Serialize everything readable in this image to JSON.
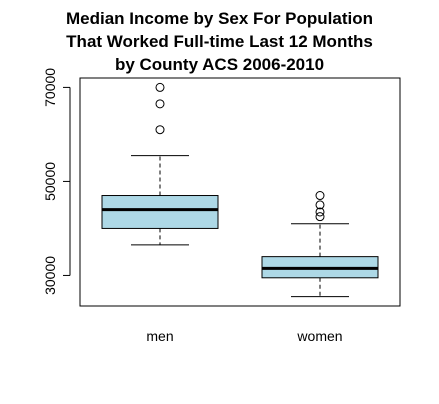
{
  "chart_data": {
    "type": "boxplot",
    "title_lines": [
      "Median Income by Sex For Population",
      "That Worked Full-time Last 12 Months",
      "by County ACS 2006-2010"
    ],
    "categories": [
      "men",
      "women"
    ],
    "ylim": [
      23500,
      72000
    ],
    "yticks": [
      {
        "value": 30000,
        "label": "30000"
      },
      {
        "value": 50000,
        "label": "50000"
      },
      {
        "value": 70000,
        "label": "70000"
      }
    ],
    "grid": false,
    "box_fill": "#add8e6",
    "boxes": [
      {
        "name": "men",
        "whisker_low": 36500,
        "q1": 40000,
        "median": 44000,
        "q3": 47000,
        "whisker_high": 55500,
        "outliers": [
          61000,
          66500,
          70000
        ]
      },
      {
        "name": "women",
        "whisker_low": 25500,
        "q1": 29500,
        "median": 31500,
        "q3": 34000,
        "whisker_high": 41000,
        "outliers": [
          42500,
          43500,
          45000,
          47000
        ]
      }
    ]
  }
}
